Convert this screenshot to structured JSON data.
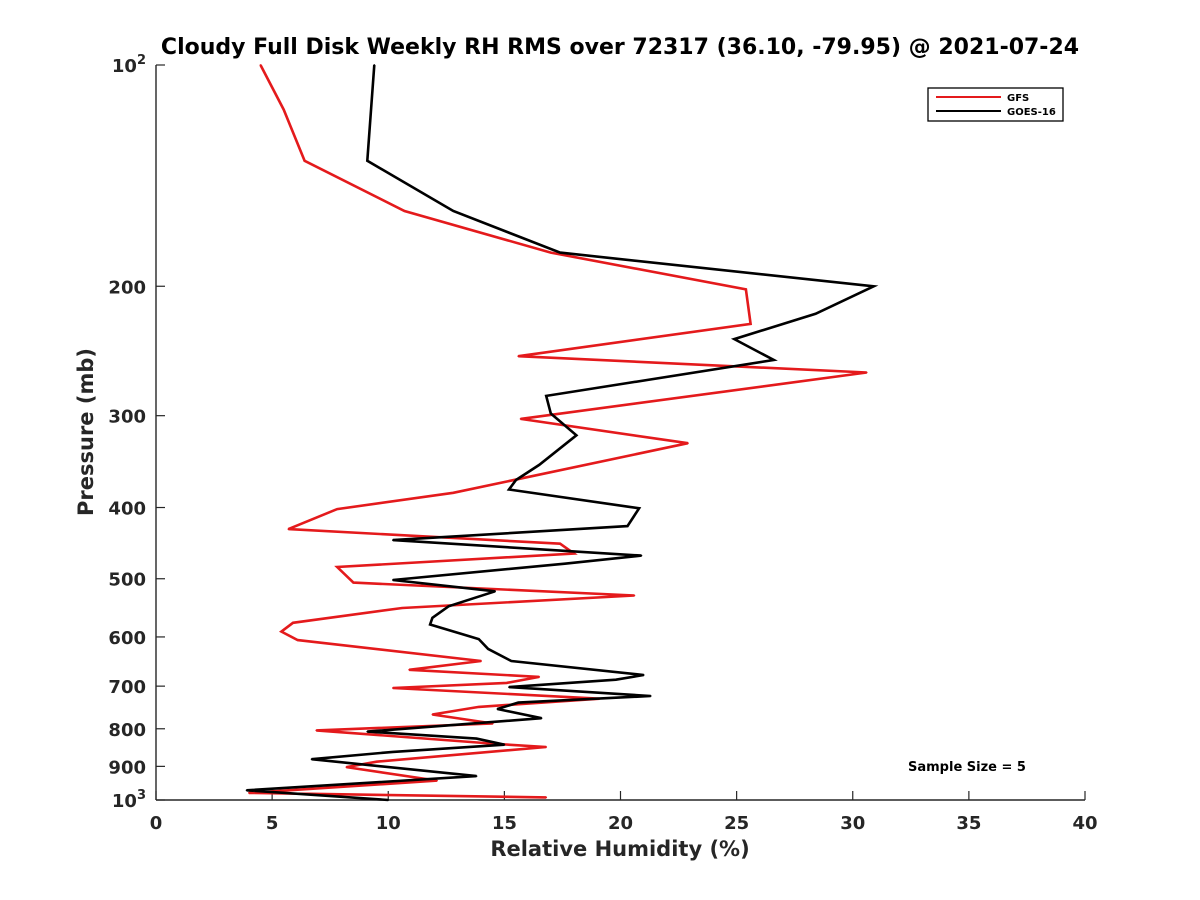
{
  "chart_data": {
    "type": "line",
    "title": "Cloudy Full Disk Weekly RH RMS over 72317 (36.10, -79.95) @ 2021-07-24",
    "xlabel": "Relative Humidity (%)",
    "ylabel": "Pressure (mb)",
    "xlim": [
      0,
      40
    ],
    "ylim": [
      100,
      1000
    ],
    "yscale": "log",
    "y_reversed": true,
    "x_ticks": [
      "0",
      "5",
      "10",
      "15",
      "20",
      "25",
      "30",
      "35",
      "40"
    ],
    "y_ticks": [
      {
        "value": 100,
        "base": "10",
        "exp": "2"
      },
      {
        "value": 200,
        "label": "200"
      },
      {
        "value": 300,
        "label": "300"
      },
      {
        "value": 400,
        "label": "400"
      },
      {
        "value": 500,
        "label": "500"
      },
      {
        "value": 600,
        "label": "600"
      },
      {
        "value": 700,
        "label": "700"
      },
      {
        "value": 800,
        "label": "800"
      },
      {
        "value": 900,
        "label": "900"
      },
      {
        "value": 1000,
        "base": "10",
        "exp": "3"
      }
    ],
    "legend_position": "top-right",
    "grid": false,
    "series": [
      {
        "name": "GFS",
        "color": "#e41a1c",
        "points": [
          [
            4.5,
            100
          ],
          [
            5.5,
            115
          ],
          [
            6.4,
            135
          ],
          [
            10.7,
            158
          ],
          [
            17.0,
            180
          ],
          [
            25.4,
            202
          ],
          [
            25.6,
            225
          ],
          [
            15.6,
            249
          ],
          [
            30.6,
            262
          ],
          [
            15.7,
            303
          ],
          [
            22.9,
            327
          ],
          [
            12.8,
            382
          ],
          [
            7.8,
            402
          ],
          [
            5.7,
            428
          ],
          [
            17.4,
            448
          ],
          [
            18.0,
            462
          ],
          [
            7.8,
            482
          ],
          [
            8.5,
            506
          ],
          [
            20.6,
            527
          ],
          [
            10.6,
            548
          ],
          [
            5.9,
            574
          ],
          [
            5.4,
            590
          ],
          [
            6.1,
            606
          ],
          [
            14.0,
            647
          ],
          [
            10.9,
            665
          ],
          [
            16.5,
            680
          ],
          [
            15.1,
            693
          ],
          [
            10.2,
            704
          ],
          [
            19.1,
            728
          ],
          [
            13.9,
            747
          ],
          [
            11.9,
            765
          ],
          [
            14.5,
            787
          ],
          [
            6.9,
            804
          ],
          [
            14.7,
            839
          ],
          [
            16.8,
            847
          ],
          [
            9.5,
            887
          ],
          [
            8.2,
            902
          ],
          [
            12.1,
            941
          ],
          [
            4.0,
            978
          ],
          [
            16.8,
            992
          ]
        ]
      },
      {
        "name": "GOES-16",
        "color": "#000000",
        "points": [
          [
            9.4,
            100
          ],
          [
            9.1,
            135
          ],
          [
            12.8,
            158
          ],
          [
            17.4,
            180
          ],
          [
            30.9,
            200
          ],
          [
            28.4,
            218
          ],
          [
            24.9,
            236
          ],
          [
            26.6,
            252
          ],
          [
            16.8,
            282
          ],
          [
            17.0,
            298
          ],
          [
            18.1,
            319
          ],
          [
            16.5,
            350
          ],
          [
            15.5,
            367
          ],
          [
            15.2,
            378
          ],
          [
            20.8,
            401
          ],
          [
            20.3,
            424
          ],
          [
            10.2,
            443
          ],
          [
            20.9,
            465
          ],
          [
            17.6,
            477
          ],
          [
            10.2,
            502
          ],
          [
            14.6,
            520
          ],
          [
            12.6,
            545
          ],
          [
            11.9,
            565
          ],
          [
            11.8,
            577
          ],
          [
            13.9,
            604
          ],
          [
            14.3,
            623
          ],
          [
            15.3,
            647
          ],
          [
            21.0,
            676
          ],
          [
            19.8,
            686
          ],
          [
            15.2,
            702
          ],
          [
            21.3,
            722
          ],
          [
            15.6,
            737
          ],
          [
            14.7,
            752
          ],
          [
            16.6,
            774
          ],
          [
            9.1,
            807
          ],
          [
            13.8,
            825
          ],
          [
            15.0,
            841
          ],
          [
            10.2,
            860
          ],
          [
            6.7,
            880
          ],
          [
            13.8,
            928
          ],
          [
            3.9,
            970
          ],
          [
            10.0,
            1000
          ]
        ]
      }
    ],
    "annotations": [
      "Sample Size = 5"
    ]
  },
  "colors": {
    "axis": "#262626",
    "gfs": "#e41a1c",
    "goes": "#000000"
  }
}
